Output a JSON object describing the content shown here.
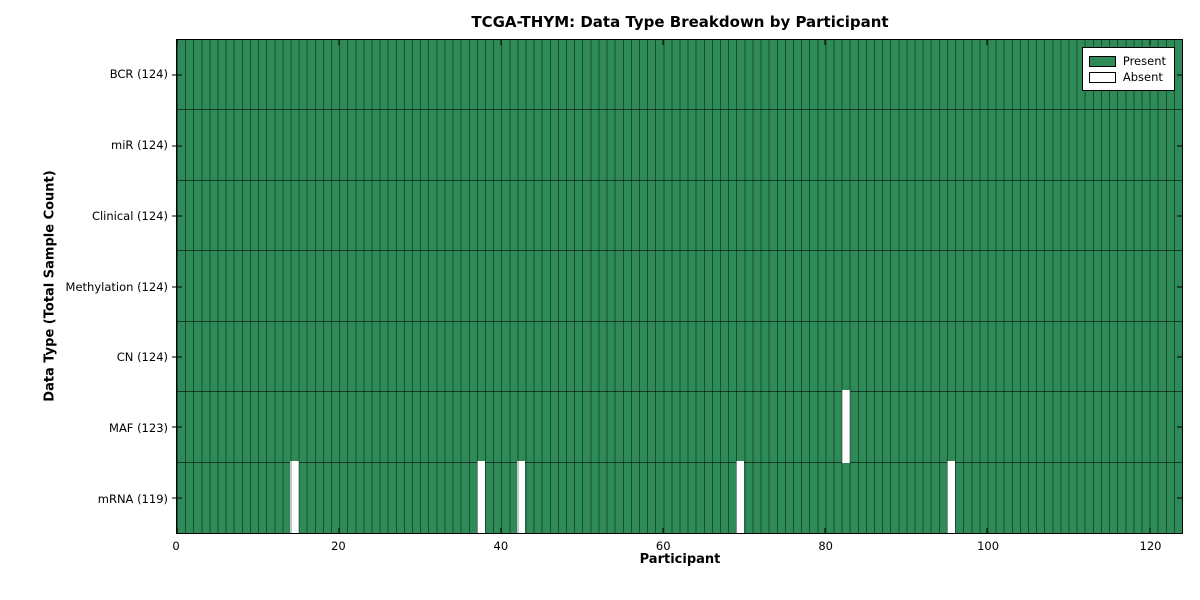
{
  "chart_data": {
    "type": "heatmap",
    "title": "TCGA-THYM: Data Type Breakdown by Participant",
    "xlabel": "Participant",
    "ylabel": "Data Type (Total Sample Count)",
    "x_range": [
      0,
      124
    ],
    "x_ticks": [
      0,
      20,
      40,
      60,
      80,
      100,
      120
    ],
    "grid": true,
    "legend_position": "upper right",
    "legend": {
      "present": "Present",
      "absent": "Absent"
    },
    "colors": {
      "present": "#2e8b57",
      "absent": "#ffffff",
      "cell_edge": "rgba(0,0,0,0.45)",
      "row_separator": "rgba(0,0,0,0.55)",
      "spine": "#000000"
    },
    "rows": [
      {
        "name": "BCR",
        "label": "BCR (124)",
        "total": 124,
        "absent_participants": []
      },
      {
        "name": "miR",
        "label": "miR (124)",
        "total": 124,
        "absent_participants": []
      },
      {
        "name": "Clinical",
        "label": "Clinical (124)",
        "total": 124,
        "absent_participants": []
      },
      {
        "name": "Methylation",
        "label": "Methylation (124)",
        "total": 124,
        "absent_participants": []
      },
      {
        "name": "CN",
        "label": "CN (124)",
        "total": 124,
        "absent_participants": []
      },
      {
        "name": "MAF",
        "label": "MAF (123)",
        "total": 123,
        "absent_participants": [
          82
        ]
      },
      {
        "name": "mRNA",
        "label": "mRNA (119)",
        "total": 119,
        "absent_participants": [
          14,
          37,
          42,
          69,
          95
        ]
      }
    ]
  }
}
